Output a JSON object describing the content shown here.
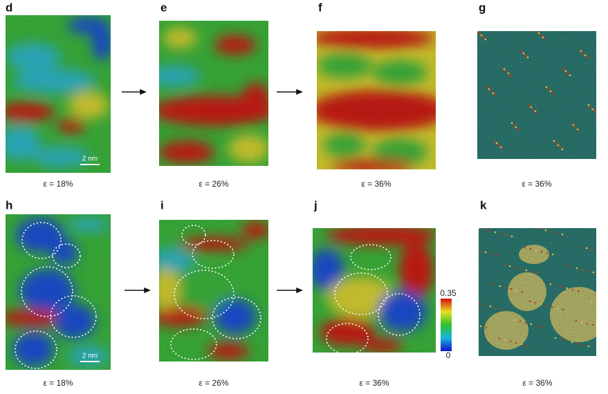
{
  "panels": [
    {
      "label": "d",
      "caption": "ε = 18%",
      "scale_bar": "2 nm"
    },
    {
      "label": "e",
      "caption": "ε = 26%"
    },
    {
      "label": "f",
      "caption": "ε = 36%"
    },
    {
      "label": "g",
      "caption": "ε = 36%"
    },
    {
      "label": "h",
      "caption": "ε = 18%",
      "scale_bar": "2 nm"
    },
    {
      "label": "i",
      "caption": "ε = 26%"
    },
    {
      "label": "j",
      "caption": "ε = 36%"
    },
    {
      "label": "k",
      "caption": "ε = 36%"
    }
  ],
  "colorbar": {
    "max": 0.35,
    "min": 0
  }
}
